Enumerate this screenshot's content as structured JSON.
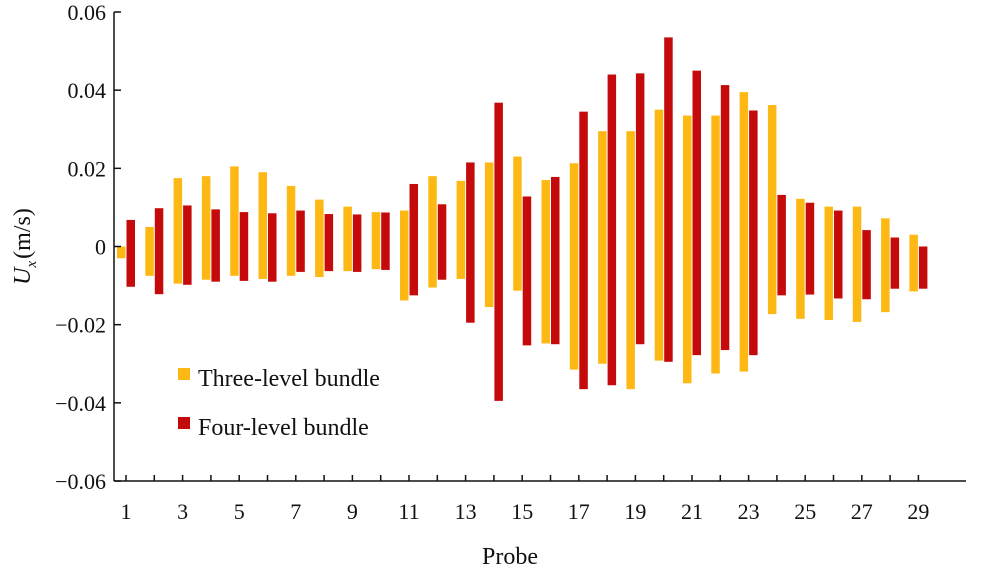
{
  "chart_data": {
    "type": "bar",
    "title": "",
    "xlabel": "Probe",
    "ylabel": {
      "symbol": "U",
      "subscript": "x",
      "unit": "(m/s)"
    },
    "ylim": [
      -0.06,
      0.06
    ],
    "yticks": [
      "0.06",
      "0.04",
      "0.02",
      "0",
      "−0.02",
      "−0.04",
      "−0.06"
    ],
    "ytick_values": [
      0.06,
      0.04,
      0.02,
      0,
      -0.02,
      -0.04,
      -0.06
    ],
    "xticks": [
      "1",
      "3",
      "5",
      "7",
      "9",
      "11",
      "13",
      "15",
      "17",
      "19",
      "21",
      "23",
      "25",
      "27",
      "29"
    ],
    "xtick_values": [
      1,
      3,
      5,
      7,
      9,
      11,
      13,
      15,
      17,
      19,
      21,
      23,
      25,
      27,
      29
    ],
    "grid": false,
    "legend_position": "lower-left",
    "series": [
      {
        "name": "Three-level bundle",
        "color": "#FDB813",
        "positive": [
          0,
          0.005,
          0.0175,
          0.018,
          0.0205,
          0.019,
          0.0155,
          0.012,
          0.0102,
          0.0088,
          0.0092,
          0.018,
          0.0168,
          0.0215,
          0.023,
          0.017,
          0.0213,
          0.0295,
          0.0295,
          0.035,
          0.0335,
          0.0335,
          0.0395,
          0.0362,
          0.0122,
          0.0102,
          0.0102,
          0.0072,
          0.003
        ],
        "negative": [
          -0.003,
          -0.0075,
          -0.0095,
          -0.0085,
          -0.0075,
          -0.0083,
          -0.0075,
          -0.0078,
          -0.0063,
          -0.0058,
          -0.0138,
          -0.0105,
          -0.0083,
          -0.0155,
          -0.0113,
          -0.0248,
          -0.0315,
          -0.03,
          -0.0365,
          -0.0292,
          -0.035,
          -0.0325,
          -0.032,
          -0.0173,
          -0.0185,
          -0.0188,
          -0.0193,
          -0.0168,
          -0.0115
        ]
      },
      {
        "name": "Four-level bundle",
        "color": "#C40A0A",
        "positive": [
          0.0068,
          0.0098,
          0.0105,
          0.0095,
          0.0088,
          0.0085,
          0.0092,
          0.0083,
          0.0082,
          0.0087,
          0.016,
          0.0108,
          0.0215,
          0.0368,
          0.0128,
          0.0178,
          0.0345,
          0.044,
          0.0443,
          0.0535,
          0.045,
          0.0413,
          0.0348,
          0.0132,
          0.0112,
          0.0092,
          0.0042,
          0.0023,
          0
        ],
        "negative": [
          -0.0103,
          -0.0122,
          -0.0098,
          -0.009,
          -0.0088,
          -0.009,
          -0.0065,
          -0.0063,
          -0.0065,
          -0.006,
          -0.0125,
          -0.0085,
          -0.0195,
          -0.0395,
          -0.0253,
          -0.025,
          -0.0365,
          -0.0355,
          -0.025,
          -0.0295,
          -0.0278,
          -0.0265,
          -0.0278,
          -0.0125,
          -0.0123,
          -0.0133,
          -0.0135,
          -0.0108,
          -0.0108
        ]
      }
    ]
  }
}
